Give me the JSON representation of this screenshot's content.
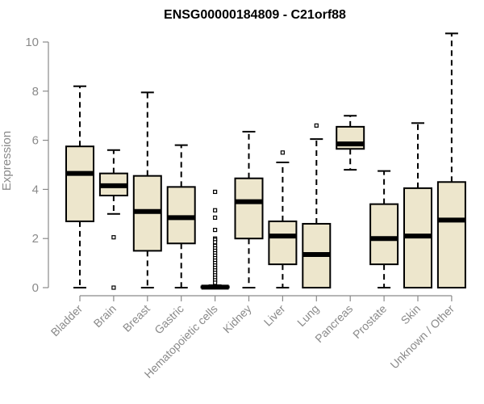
{
  "chart_data": {
    "type": "boxplot",
    "title": "ENSG00000184809 - C21orf88",
    "ylabel": "Expression",
    "ylim": [
      0,
      10.4
    ],
    "yticks": [
      0,
      2,
      4,
      6,
      8,
      10
    ],
    "box_color": "#ede6cc",
    "categories": [
      "Bladder",
      "Brain",
      "Breast",
      "Gastric",
      "Hematopoietic cells",
      "Kidney",
      "Liver",
      "Lung",
      "Pancreas",
      "Prostate",
      "Skin",
      "Unknown / Other"
    ],
    "boxes": [
      {
        "min": 0,
        "q1": 2.7,
        "median": 4.65,
        "q3": 5.75,
        "max": 8.2,
        "outliers": []
      },
      {
        "min": 3.0,
        "q1": 3.75,
        "median": 4.15,
        "q3": 4.65,
        "max": 5.6,
        "outliers": [
          2.05,
          0.0
        ]
      },
      {
        "min": 0,
        "q1": 1.5,
        "median": 3.1,
        "q3": 4.55,
        "max": 7.95,
        "outliers": []
      },
      {
        "min": 0,
        "q1": 1.8,
        "median": 2.85,
        "q3": 4.1,
        "max": 5.8,
        "outliers": []
      },
      {
        "min": 0,
        "q1": 0,
        "median": 0.02,
        "q3": 0.05,
        "max": 0.1,
        "outliers": [
          3.9,
          3.15,
          2.85,
          2.35,
          2.0,
          1.95,
          1.85,
          1.7,
          1.6,
          1.5,
          1.4,
          1.3,
          1.2,
          1.1,
          1.0,
          0.9,
          0.8,
          0.7,
          0.6,
          0.5,
          0.4,
          0.3,
          0.2
        ]
      },
      {
        "min": 0,
        "q1": 2.0,
        "median": 3.5,
        "q3": 4.45,
        "max": 6.35,
        "outliers": []
      },
      {
        "min": 0,
        "q1": 0.95,
        "median": 2.1,
        "q3": 2.7,
        "max": 5.1,
        "outliers": [
          5.5
        ]
      },
      {
        "min": 0,
        "q1": 0,
        "median": 1.35,
        "q3": 2.6,
        "max": 6.05,
        "outliers": [
          6.6
        ]
      },
      {
        "min": 4.8,
        "q1": 5.65,
        "median": 5.85,
        "q3": 6.55,
        "max": 7.0,
        "outliers": []
      },
      {
        "min": 0,
        "q1": 0.95,
        "median": 2.0,
        "q3": 3.4,
        "max": 4.75,
        "outliers": []
      },
      {
        "min": 0,
        "q1": 0,
        "median": 2.1,
        "q3": 4.05,
        "max": 6.7,
        "outliers": []
      },
      {
        "min": 0,
        "q1": 0,
        "median": 2.75,
        "q3": 4.3,
        "max": 10.35,
        "outliers": []
      }
    ]
  }
}
